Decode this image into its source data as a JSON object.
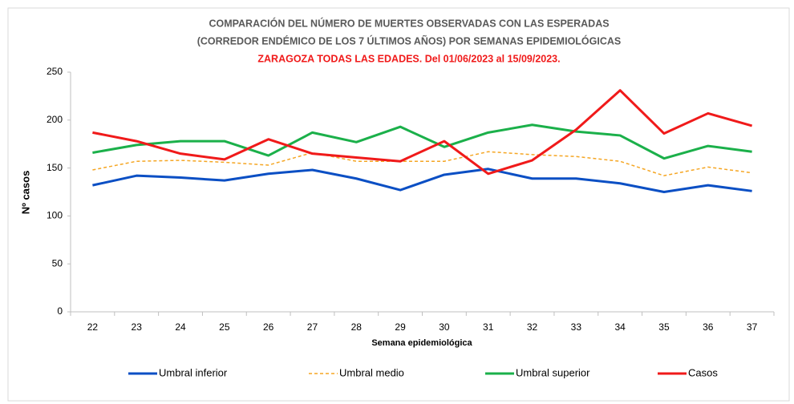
{
  "chart_data": {
    "type": "line",
    "title": [
      "COMPARACIÓN DEL NÚMERO DE MUERTES OBSERVADAS CON LAS ESPERADAS",
      "(CORREDOR ENDÉMICO DE LOS 7 ÚLTIMOS  AÑOS) POR SEMANAS EPIDEMIOLÓGICAS"
    ],
    "subtitle": "ZARAGOZA TODAS LAS EDADES. Del 01/06/2023 al 15/09/2023.",
    "x_label": "Semana epidemiológica",
    "y_label": "Nº casos",
    "categories": [
      "22",
      "23",
      "24",
      "25",
      "26",
      "27",
      "28",
      "29",
      "30",
      "31",
      "32",
      "33",
      "34",
      "35",
      "36",
      "37"
    ],
    "ylim": [
      0,
      250
    ],
    "yticks": [
      0,
      50,
      100,
      150,
      200,
      250
    ],
    "legend": "bottom",
    "series": [
      {
        "name": "Umbral inferior",
        "color": "#0b4fc4",
        "style": "solid",
        "values": [
          132,
          142,
          140,
          137,
          144,
          148,
          139,
          127,
          143,
          149,
          139,
          139,
          134,
          125,
          132,
          126
        ]
      },
      {
        "name": "Umbral medio",
        "color": "#f5a623",
        "style": "dashed",
        "values": [
          148,
          157,
          158,
          156,
          153,
          166,
          157,
          157,
          157,
          167,
          164,
          162,
          157,
          142,
          151,
          145
        ]
      },
      {
        "name": "Umbral superior",
        "color": "#1bb04a",
        "style": "solid",
        "values": [
          166,
          174,
          178,
          178,
          163,
          187,
          177,
          193,
          172,
          187,
          195,
          188,
          184,
          160,
          173,
          167
        ]
      },
      {
        "name": "Casos",
        "color": "#f01a1a",
        "style": "solid",
        "values": [
          187,
          178,
          165,
          159,
          180,
          165,
          161,
          157,
          178,
          144,
          158,
          190,
          231,
          186,
          207,
          194
        ]
      }
    ]
  }
}
